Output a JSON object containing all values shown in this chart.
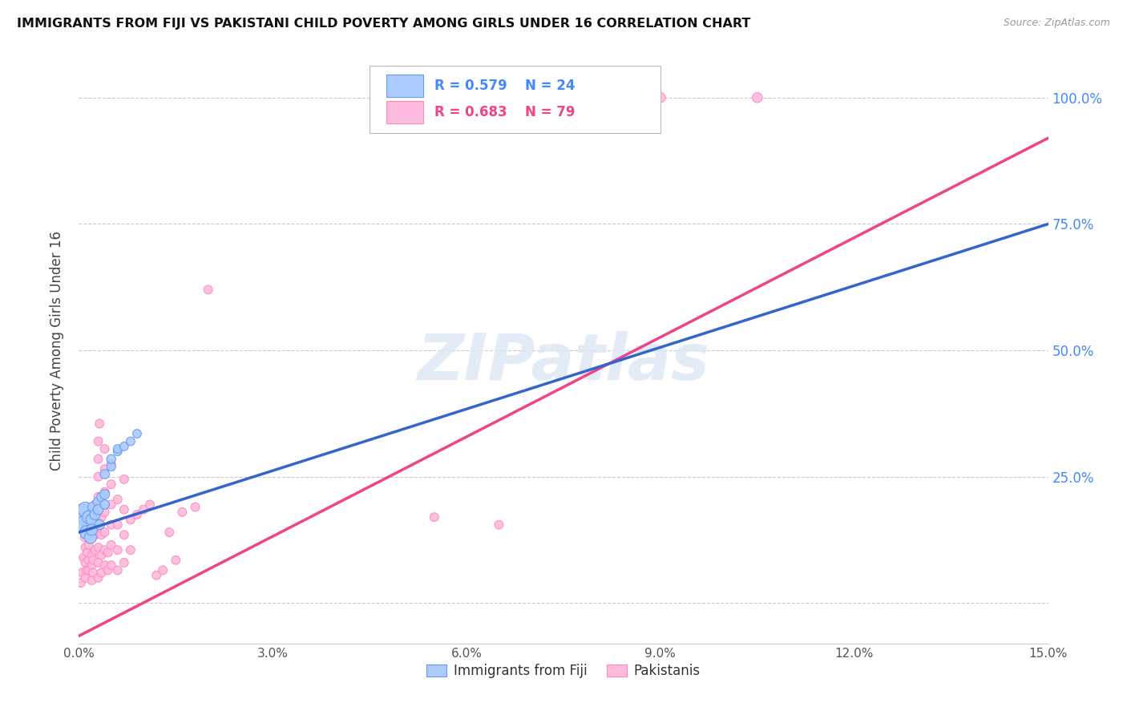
{
  "title": "IMMIGRANTS FROM FIJI VS PAKISTANI CHILD POVERTY AMONG GIRLS UNDER 16 CORRELATION CHART",
  "source": "Source: ZipAtlas.com",
  "ylabel": "Child Poverty Among Girls Under 16",
  "xmin": 0.0,
  "xmax": 0.15,
  "ymin": -0.08,
  "ymax": 1.08,
  "fiji_color": "#aaccff",
  "fiji_color_edge": "#6699ee",
  "pakistani_color": "#ffbbdd",
  "pakistani_color_edge": "#ff88bb",
  "fiji_line_color": "#3366cc",
  "pakistani_line_color": "#ee4488",
  "dashed_line_color": "#aabbdd",
  "fiji_R": 0.579,
  "fiji_N": 24,
  "pakistani_R": 0.683,
  "pakistani_N": 79,
  "watermark": "ZIPatlas",
  "legend_fiji_label": "Immigrants from Fiji",
  "legend_pakistani_label": "Pakistanis",
  "fiji_scatter": [
    [
      0.0005,
      0.175
    ],
    [
      0.0008,
      0.155
    ],
    [
      0.001,
      0.185
    ],
    [
      0.0012,
      0.14
    ],
    [
      0.0015,
      0.17
    ],
    [
      0.0018,
      0.13
    ],
    [
      0.002,
      0.165
    ],
    [
      0.002,
      0.145
    ],
    [
      0.0022,
      0.19
    ],
    [
      0.0025,
      0.175
    ],
    [
      0.003,
      0.2
    ],
    [
      0.003,
      0.185
    ],
    [
      0.0032,
      0.155
    ],
    [
      0.0035,
      0.21
    ],
    [
      0.004,
      0.215
    ],
    [
      0.004,
      0.195
    ],
    [
      0.004,
      0.255
    ],
    [
      0.005,
      0.27
    ],
    [
      0.005,
      0.285
    ],
    [
      0.006,
      0.3
    ],
    [
      0.006,
      0.305
    ],
    [
      0.007,
      0.31
    ],
    [
      0.008,
      0.32
    ],
    [
      0.009,
      0.335
    ]
  ],
  "fiji_sizes": [
    350,
    250,
    180,
    150,
    130,
    120,
    110,
    100,
    90,
    90,
    85,
    80,
    80,
    75,
    75,
    70,
    70,
    65,
    65,
    60,
    60,
    60,
    60,
    60
  ],
  "pakistani_scatter": [
    [
      0.0003,
      0.04
    ],
    [
      0.0005,
      0.06
    ],
    [
      0.0007,
      0.09
    ],
    [
      0.0009,
      0.13
    ],
    [
      0.001,
      0.05
    ],
    [
      0.001,
      0.08
    ],
    [
      0.001,
      0.11
    ],
    [
      0.001,
      0.155
    ],
    [
      0.0012,
      0.065
    ],
    [
      0.0013,
      0.1
    ],
    [
      0.0015,
      0.065
    ],
    [
      0.0015,
      0.085
    ],
    [
      0.0015,
      0.115
    ],
    [
      0.0017,
      0.145
    ],
    [
      0.002,
      0.045
    ],
    [
      0.002,
      0.075
    ],
    [
      0.002,
      0.095
    ],
    [
      0.002,
      0.13
    ],
    [
      0.002,
      0.155
    ],
    [
      0.002,
      0.175
    ],
    [
      0.0022,
      0.06
    ],
    [
      0.0022,
      0.085
    ],
    [
      0.0025,
      0.105
    ],
    [
      0.0025,
      0.135
    ],
    [
      0.0025,
      0.165
    ],
    [
      0.0025,
      0.195
    ],
    [
      0.003,
      0.05
    ],
    [
      0.003,
      0.08
    ],
    [
      0.003,
      0.11
    ],
    [
      0.003,
      0.14
    ],
    [
      0.003,
      0.17
    ],
    [
      0.003,
      0.21
    ],
    [
      0.003,
      0.25
    ],
    [
      0.003,
      0.285
    ],
    [
      0.003,
      0.32
    ],
    [
      0.0032,
      0.355
    ],
    [
      0.0035,
      0.06
    ],
    [
      0.0035,
      0.095
    ],
    [
      0.0035,
      0.135
    ],
    [
      0.0035,
      0.17
    ],
    [
      0.004,
      0.075
    ],
    [
      0.004,
      0.105
    ],
    [
      0.004,
      0.14
    ],
    [
      0.004,
      0.18
    ],
    [
      0.004,
      0.22
    ],
    [
      0.004,
      0.265
    ],
    [
      0.004,
      0.305
    ],
    [
      0.0045,
      0.065
    ],
    [
      0.0045,
      0.1
    ],
    [
      0.005,
      0.075
    ],
    [
      0.005,
      0.115
    ],
    [
      0.005,
      0.155
    ],
    [
      0.005,
      0.195
    ],
    [
      0.005,
      0.235
    ],
    [
      0.005,
      0.275
    ],
    [
      0.006,
      0.065
    ],
    [
      0.006,
      0.105
    ],
    [
      0.006,
      0.155
    ],
    [
      0.006,
      0.205
    ],
    [
      0.007,
      0.08
    ],
    [
      0.007,
      0.135
    ],
    [
      0.007,
      0.185
    ],
    [
      0.007,
      0.245
    ],
    [
      0.008,
      0.105
    ],
    [
      0.008,
      0.165
    ],
    [
      0.009,
      0.175
    ],
    [
      0.01,
      0.185
    ],
    [
      0.011,
      0.195
    ],
    [
      0.012,
      0.055
    ],
    [
      0.013,
      0.065
    ],
    [
      0.014,
      0.14
    ],
    [
      0.015,
      0.085
    ],
    [
      0.016,
      0.18
    ],
    [
      0.018,
      0.19
    ],
    [
      0.02,
      0.62
    ],
    [
      0.055,
      0.17
    ],
    [
      0.065,
      0.155
    ],
    [
      0.09,
      1.0
    ],
    [
      0.105,
      1.0
    ]
  ],
  "pakistani_sizes": [
    60,
    60,
    60,
    60,
    60,
    60,
    60,
    60,
    60,
    60,
    60,
    60,
    60,
    60,
    60,
    60,
    60,
    60,
    60,
    60,
    60,
    60,
    60,
    60,
    60,
    60,
    60,
    60,
    60,
    60,
    60,
    60,
    60,
    60,
    60,
    60,
    60,
    60,
    60,
    60,
    60,
    60,
    60,
    60,
    60,
    60,
    60,
    60,
    60,
    60,
    60,
    60,
    60,
    60,
    60,
    60,
    60,
    60,
    60,
    60,
    60,
    60,
    60,
    60,
    60,
    60,
    60,
    60,
    60,
    60,
    60,
    60,
    60,
    60,
    60,
    60,
    60,
    80,
    80
  ],
  "fiji_line_x0": 0.0,
  "fiji_line_y0": 0.14,
  "fiji_line_x1": 0.15,
  "fiji_line_y1": 0.75,
  "pak_line_x0": 0.0,
  "pak_line_y0": -0.065,
  "pak_line_x1": 0.15,
  "pak_line_y1": 0.92
}
